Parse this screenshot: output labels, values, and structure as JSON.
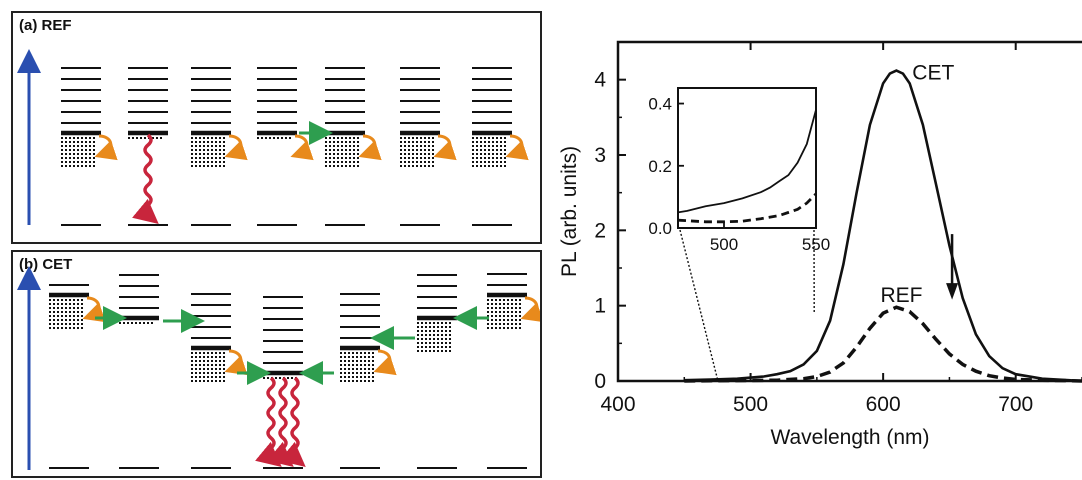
{
  "panel_a": {
    "label": "(a) REF"
  },
  "panel_b": {
    "label": "(b) CET"
  },
  "colors": {
    "axis_arrow": "#2a4fb0",
    "emission_arrow": "#c8253c",
    "transfer_arrow": "#2e9e4f",
    "relaxation_arrow": "#e88a1c",
    "level": "#111111"
  },
  "chart_data": {
    "type": "line",
    "xlabel": "Wavelength (nm)",
    "ylabel": "PL (arb. units)",
    "xlim": [
      400,
      750
    ],
    "ylim": [
      0,
      4.5
    ],
    "xticks": [
      "400",
      "500",
      "600",
      "700"
    ],
    "yticks": [
      "0",
      "1",
      "2",
      "3",
      "4"
    ],
    "series": [
      {
        "name": "CET",
        "style": "solid",
        "x": [
          450,
          470,
          490,
          510,
          520,
          530,
          540,
          550,
          560,
          570,
          580,
          590,
          600,
          605,
          610,
          615,
          620,
          630,
          640,
          650,
          660,
          670,
          680,
          690,
          700,
          720,
          740,
          750
        ],
        "y": [
          0.01,
          0.02,
          0.03,
          0.06,
          0.09,
          0.13,
          0.22,
          0.4,
          0.8,
          1.55,
          2.5,
          3.4,
          3.95,
          4.08,
          4.12,
          4.08,
          3.95,
          3.4,
          2.6,
          1.8,
          1.1,
          0.62,
          0.33,
          0.17,
          0.09,
          0.03,
          0.01,
          0.0
        ]
      },
      {
        "name": "REF",
        "style": "dashed",
        "x": [
          450,
          490,
          520,
          540,
          550,
          560,
          570,
          580,
          590,
          600,
          610,
          620,
          630,
          640,
          650,
          660,
          670,
          680,
          690,
          700,
          720,
          750
        ],
        "y": [
          0.0,
          0.005,
          0.01,
          0.03,
          0.06,
          0.12,
          0.24,
          0.45,
          0.7,
          0.9,
          0.98,
          0.92,
          0.76,
          0.55,
          0.36,
          0.22,
          0.13,
          0.07,
          0.04,
          0.02,
          0.01,
          0.0
        ]
      }
    ],
    "annotations": [
      {
        "text": "CET"
      },
      {
        "text": "REF"
      }
    ],
    "inset": {
      "xlim": [
        475,
        550
      ],
      "ylim": [
        0,
        0.45
      ],
      "xticks": [
        "500",
        "550"
      ],
      "yticks": [
        "0.0",
        "0.2",
        "0.4"
      ],
      "series": [
        {
          "name": "CET",
          "style": "solid",
          "x": [
            475,
            480,
            490,
            500,
            510,
            520,
            525,
            530,
            535,
            540,
            545,
            550
          ],
          "y": [
            0.05,
            0.055,
            0.07,
            0.08,
            0.095,
            0.115,
            0.13,
            0.15,
            0.17,
            0.21,
            0.27,
            0.38
          ]
        },
        {
          "name": "REF",
          "style": "dashed",
          "x": [
            475,
            490,
            500,
            510,
            520,
            530,
            540,
            545,
            550
          ],
          "y": [
            0.025,
            0.02,
            0.02,
            0.022,
            0.03,
            0.04,
            0.06,
            0.08,
            0.11
          ]
        }
      ]
    }
  }
}
